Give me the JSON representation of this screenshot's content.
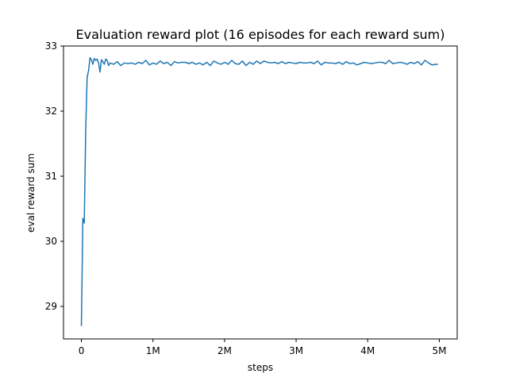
{
  "chart_data": {
    "type": "line",
    "title": "Evaluation reward plot (16 episodes for each reward sum)",
    "xlabel": "steps",
    "ylabel": "eval reward sum",
    "xlim": [
      -250000,
      5250000
    ],
    "ylim": [
      28.5,
      33.0
    ],
    "xticks": [
      {
        "value": 0,
        "label": "0"
      },
      {
        "value": 1000000,
        "label": "1M"
      },
      {
        "value": 2000000,
        "label": "2M"
      },
      {
        "value": 3000000,
        "label": "3M"
      },
      {
        "value": 4000000,
        "label": "4M"
      },
      {
        "value": 5000000,
        "label": "5M"
      }
    ],
    "yticks": [
      {
        "value": 29,
        "label": "29"
      },
      {
        "value": 30,
        "label": "30"
      },
      {
        "value": 31,
        "label": "31"
      },
      {
        "value": 32,
        "label": "32"
      },
      {
        "value": 33,
        "label": "33"
      }
    ],
    "grid": false,
    "legend": "none",
    "line_color": "#1f77b4",
    "series": [
      {
        "x": [
          0,
          20000,
          40000,
          60000,
          80000,
          100000,
          120000,
          140000,
          160000,
          180000,
          200000,
          220000,
          240000,
          260000,
          280000,
          300000,
          320000,
          340000,
          360000,
          380000,
          400000,
          450000,
          500000,
          550000,
          600000,
          650000,
          700000,
          750000,
          800000,
          850000,
          900000,
          950000,
          1000000,
          1050000,
          1100000,
          1150000,
          1200000,
          1250000,
          1300000,
          1350000,
          1400000,
          1450000,
          1500000,
          1550000,
          1600000,
          1650000,
          1700000,
          1750000,
          1800000,
          1850000,
          1900000,
          1950000,
          2000000,
          2050000,
          2100000,
          2150000,
          2200000,
          2250000,
          2300000,
          2350000,
          2400000,
          2450000,
          2500000,
          2550000,
          2600000,
          2650000,
          2700000,
          2750000,
          2800000,
          2850000,
          2900000,
          2950000,
          3000000,
          3050000,
          3100000,
          3150000,
          3200000,
          3250000,
          3300000,
          3350000,
          3400000,
          3450000,
          3500000,
          3550000,
          3600000,
          3650000,
          3700000,
          3750000,
          3800000,
          3850000,
          3900000,
          3950000,
          4000000,
          4050000,
          4100000,
          4150000,
          4200000,
          4250000,
          4300000,
          4350000,
          4400000,
          4450000,
          4500000,
          4550000,
          4600000,
          4650000,
          4700000,
          4750000,
          4800000,
          4850000,
          4900000,
          4950000,
          4980000
        ],
        "y": [
          28.7,
          30.35,
          30.28,
          31.7,
          32.52,
          32.62,
          32.82,
          32.79,
          32.72,
          32.81,
          32.78,
          32.8,
          32.74,
          32.6,
          32.79,
          32.76,
          32.72,
          32.8,
          32.78,
          32.7,
          32.74,
          32.72,
          32.76,
          32.7,
          32.74,
          32.73,
          32.74,
          32.72,
          32.75,
          32.73,
          32.78,
          32.71,
          32.74,
          32.72,
          32.77,
          32.73,
          32.75,
          32.7,
          32.76,
          32.74,
          32.75,
          32.75,
          32.73,
          32.75,
          32.72,
          32.74,
          32.71,
          32.75,
          32.7,
          32.77,
          32.74,
          32.72,
          32.75,
          32.72,
          32.78,
          32.73,
          32.72,
          32.77,
          32.7,
          32.75,
          32.72,
          32.77,
          32.73,
          32.77,
          32.75,
          32.74,
          32.75,
          32.73,
          32.76,
          32.73,
          32.75,
          32.74,
          32.73,
          32.75,
          32.74,
          32.74,
          32.75,
          32.73,
          32.77,
          32.71,
          32.75,
          32.74,
          32.74,
          32.73,
          32.75,
          32.72,
          32.76,
          32.73,
          32.74,
          32.71,
          32.73,
          32.75,
          32.74,
          32.73,
          32.74,
          32.75,
          32.75,
          32.73,
          32.78,
          32.73,
          32.74,
          32.75,
          32.74,
          32.72,
          32.75,
          32.73,
          32.76,
          32.71,
          32.78,
          32.74,
          32.71,
          32.72,
          32.72
        ]
      }
    ]
  }
}
